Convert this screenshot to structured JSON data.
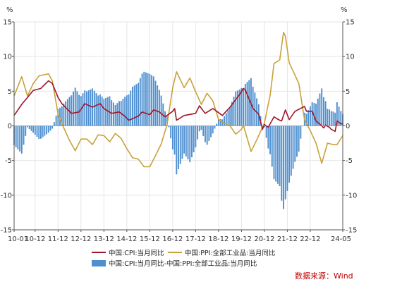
{
  "chart_data": {
    "type": "bar+line",
    "left_axis_unit": "%",
    "right_axis_unit": "%",
    "ylim": [
      -15,
      15
    ],
    "yticks": [
      -15,
      -10,
      -5,
      0,
      5,
      10,
      15
    ],
    "x_ticks": [
      "10-01",
      "10-12",
      "11-12",
      "12-12",
      "13-12",
      "14-12",
      "15-12",
      "16-12",
      "17-12",
      "18-12",
      "19-12",
      "20-12",
      "21-12",
      "22-12",
      "24-05"
    ],
    "x_start": "2010-01",
    "x_end": "2024-05",
    "grid": true,
    "legend_placement": "bottom",
    "series": [
      {
        "name": "中国:CPI:当月同比",
        "type": "line",
        "color": "#a0152a",
        "anchors": [
          [
            "2010-01",
            1.5
          ],
          [
            "2010-05",
            3.1
          ],
          [
            "2010-11",
            5.1
          ],
          [
            "2011-03",
            5.4
          ],
          [
            "2011-07",
            6.5
          ],
          [
            "2011-09",
            6.1
          ],
          [
            "2011-12",
            4.1
          ],
          [
            "2012-02",
            3.2
          ],
          [
            "2012-07",
            1.8
          ],
          [
            "2012-11",
            2.0
          ],
          [
            "2013-02",
            3.2
          ],
          [
            "2013-06",
            2.7
          ],
          [
            "2013-10",
            3.2
          ],
          [
            "2013-12",
            2.5
          ],
          [
            "2014-04",
            1.8
          ],
          [
            "2014-08",
            2.0
          ],
          [
            "2014-11",
            1.4
          ],
          [
            "2015-01",
            0.8
          ],
          [
            "2015-06",
            1.4
          ],
          [
            "2015-08",
            2.0
          ],
          [
            "2015-12",
            1.6
          ],
          [
            "2016-02",
            2.3
          ],
          [
            "2016-05",
            2.0
          ],
          [
            "2016-08",
            1.3
          ],
          [
            "2016-12",
            2.1
          ],
          [
            "2017-01",
            2.5
          ],
          [
            "2017-02",
            0.8
          ],
          [
            "2017-06",
            1.5
          ],
          [
            "2017-12",
            1.8
          ],
          [
            "2018-02",
            2.9
          ],
          [
            "2018-05",
            1.8
          ],
          [
            "2018-09",
            2.5
          ],
          [
            "2018-12",
            1.9
          ],
          [
            "2019-02",
            1.5
          ],
          [
            "2019-06",
            2.7
          ],
          [
            "2019-11",
            4.5
          ],
          [
            "2020-01",
            5.4
          ],
          [
            "2020-02",
            5.2
          ],
          [
            "2020-06",
            2.5
          ],
          [
            "2020-09",
            1.7
          ],
          [
            "2020-11",
            -0.5
          ],
          [
            "2020-12",
            0.2
          ],
          [
            "2021-02",
            -0.2
          ],
          [
            "2021-05",
            1.3
          ],
          [
            "2021-08",
            0.8
          ],
          [
            "2021-09",
            0.7
          ],
          [
            "2021-11",
            2.3
          ],
          [
            "2022-01",
            0.9
          ],
          [
            "2022-04",
            2.1
          ],
          [
            "2022-09",
            2.8
          ],
          [
            "2022-10",
            2.1
          ],
          [
            "2023-01",
            2.1
          ],
          [
            "2023-03",
            0.7
          ],
          [
            "2023-06",
            0.0
          ],
          [
            "2023-07",
            -0.3
          ],
          [
            "2023-08",
            0.1
          ],
          [
            "2023-10",
            -0.2
          ],
          [
            "2023-11",
            -0.5
          ],
          [
            "2024-01",
            -0.8
          ],
          [
            "2024-02",
            0.7
          ],
          [
            "2024-04",
            0.3
          ],
          [
            "2024-05",
            0.3
          ]
        ]
      },
      {
        "name": "中国:PPI:全部工业品:当月同比",
        "type": "line",
        "color": "#c9a13b",
        "anchors": [
          [
            "2010-01",
            4.3
          ],
          [
            "2010-05",
            7.1
          ],
          [
            "2010-08",
            4.3
          ],
          [
            "2010-11",
            6.1
          ],
          [
            "2011-02",
            7.2
          ],
          [
            "2011-07",
            7.5
          ],
          [
            "2011-09",
            6.5
          ],
          [
            "2011-12",
            1.7
          ],
          [
            "2012-03",
            -0.3
          ],
          [
            "2012-06",
            -2.1
          ],
          [
            "2012-09",
            -3.6
          ],
          [
            "2012-12",
            -1.9
          ],
          [
            "2013-03",
            -1.9
          ],
          [
            "2013-06",
            -2.7
          ],
          [
            "2013-09",
            -1.3
          ],
          [
            "2013-12",
            -1.4
          ],
          [
            "2014-03",
            -2.3
          ],
          [
            "2014-06",
            -1.1
          ],
          [
            "2014-09",
            -1.8
          ],
          [
            "2014-12",
            -3.3
          ],
          [
            "2015-03",
            -4.6
          ],
          [
            "2015-06",
            -4.8
          ],
          [
            "2015-09",
            -5.9
          ],
          [
            "2015-12",
            -5.9
          ],
          [
            "2016-03",
            -4.3
          ],
          [
            "2016-06",
            -2.6
          ],
          [
            "2016-09",
            0.1
          ],
          [
            "2016-12",
            5.5
          ],
          [
            "2017-02",
            7.8
          ],
          [
            "2017-06",
            5.5
          ],
          [
            "2017-09",
            6.9
          ],
          [
            "2017-12",
            4.9
          ],
          [
            "2018-03",
            3.1
          ],
          [
            "2018-06",
            4.7
          ],
          [
            "2018-09",
            3.6
          ],
          [
            "2018-12",
            0.9
          ],
          [
            "2019-03",
            0.4
          ],
          [
            "2019-06",
            0.0
          ],
          [
            "2019-09",
            -1.2
          ],
          [
            "2019-12",
            -0.5
          ],
          [
            "2020-01",
            0.1
          ],
          [
            "2020-05",
            -3.7
          ],
          [
            "2020-08",
            -2.0
          ],
          [
            "2020-12",
            0.4
          ],
          [
            "2021-03",
            4.4
          ],
          [
            "2021-05",
            9.0
          ],
          [
            "2021-08",
            9.5
          ],
          [
            "2021-10",
            13.5
          ],
          [
            "2021-11",
            12.9
          ],
          [
            "2022-01",
            9.1
          ],
          [
            "2022-06",
            6.1
          ],
          [
            "2022-09",
            0.9
          ],
          [
            "2022-12",
            -0.7
          ],
          [
            "2023-03",
            -2.5
          ],
          [
            "2023-06",
            -5.4
          ],
          [
            "2023-09",
            -2.5
          ],
          [
            "2023-12",
            -2.7
          ],
          [
            "2024-02",
            -2.7
          ],
          [
            "2024-05",
            -1.4
          ]
        ]
      },
      {
        "name": "中国:CPI:当月同比-中国:PPI:全部工业品:当月同比",
        "type": "bar",
        "color": "#4e8fd0",
        "derived_from": "CPI minus PPI (same month)"
      }
    ]
  },
  "source_text": "数据来源：Wind"
}
